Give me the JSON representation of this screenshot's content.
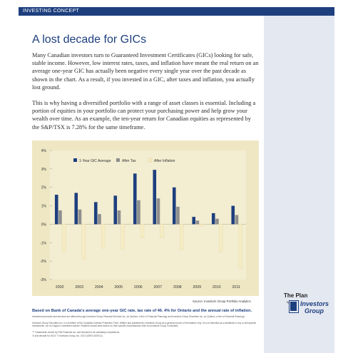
{
  "header": {
    "section_label": "INVESTING CONCEPT"
  },
  "article": {
    "title": "A lost decade for GICs",
    "paragraph_1": "Many Canadian investors turn to Guaranteed Investment Certificates (GICs) looking for safe, stable income.  However, low interest rates, taxes, and inflation have meant the real return on an average one-year GIC has actually been negative every single year over the past decade as shown in the chart. As a result, if you invested in a GIC, after taxes and inflation, you actually lost ground.",
    "paragraph_2": "This is why having a diversified portfolio with a range of asset classes is essential. Including a portion of equities in your portfolio can protect your purchasing power and help grow your wealth over time. As an example, the ten-year return for Canadian equities as represented by the S&P/TSX is 7.28% for the same timeframe."
  },
  "chart_data": {
    "type": "bar",
    "categories": [
      "2002",
      "2003",
      "2004",
      "2005",
      "2006",
      "2007",
      "2008",
      "2009",
      "2010",
      "2011"
    ],
    "series": [
      {
        "name": "1-Year GIC Average",
        "values": [
          1.6,
          1.7,
          1.2,
          1.55,
          2.75,
          2.95,
          2.0,
          0.4,
          0.6,
          1.0
        ]
      },
      {
        "name": "After Tax",
        "values": [
          0.75,
          0.8,
          0.55,
          0.75,
          1.3,
          1.4,
          0.95,
          0.2,
          0.3,
          0.5
        ]
      },
      {
        "name": "After Inflation",
        "values": [
          -1.5,
          -1.9,
          -1.3,
          -1.35,
          -0.75,
          -0.75,
          -1.4,
          -0.1,
          -1.5,
          -2.4
        ]
      }
    ],
    "ylim": [
      -3,
      4
    ],
    "yticks": [
      -3,
      -2,
      -1,
      0,
      1,
      2,
      3,
      4
    ],
    "ytick_labels": [
      "-3%",
      "-2%",
      "-1%",
      "0%",
      "1%",
      "2%",
      "3%",
      "4%"
    ],
    "legend_placement": "top-left",
    "grid": false,
    "colors": {
      "gic": "#1d3f7e",
      "after_tax": "#8e8e8e",
      "after_inflation": "#f6ecc4",
      "background": "#efe7c3"
    }
  },
  "source_note": "Source: Investors Group Portfolio Analytics",
  "footnote": "Based on Bank of Canada's average one-year GIC rate, tax rate of 46. 4% for Ontario and the annual rate of inflation.",
  "fine_print": {
    "line_1": "Investment products and services are offered through Investors Group Financial Services Inc. (in Québec, a firm in Financial Planning) and Investors Group Securities Inc. (in Québec, a firm in Financial Planning).",
    "line_2": "Investors Group Securities Inc. is a member of the Canadian Investor Protection Fund. Written and published by Investors Group as a general source of information only. It is not intended as a substitute to buy or sell specific investments, nor is it legal or investment advice. Readers should seek advice on their specific circumstances from an Investors Group Consultant.",
    "line_3": "™ Trademarks owned by IGM Financial Inc. and licensed to its subsidiary corporations.",
    "line_4": "\"A lost decade for GICs\" © Investors Group Inc. 2013   (CBF3-00/2012)"
  },
  "brand": {
    "tagline": "The Plan",
    "by": "by",
    "logo_line_1": "Investors",
    "logo_line_2": "Group"
  }
}
